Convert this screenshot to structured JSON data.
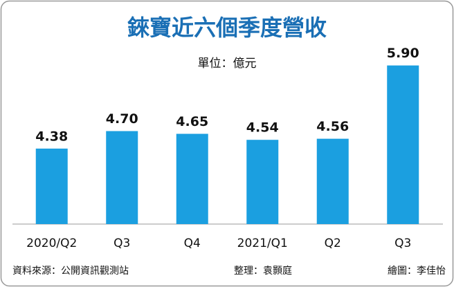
{
  "chart_data": {
    "type": "bar",
    "title": "錸寶近六個季度營收",
    "subtitle": "單位：億元",
    "categories": [
      "2020/Q2",
      "Q3",
      "Q4",
      "2021/Q1",
      "Q2",
      "Q3"
    ],
    "values": [
      4.38,
      4.7,
      4.65,
      4.54,
      4.56,
      5.9
    ],
    "value_labels": [
      "4.38",
      "4.70",
      "4.65",
      "4.54",
      "4.56",
      "5.90"
    ],
    "color": "#1b9fe0",
    "ylim": [
      3,
      6.3
    ],
    "source": "資料來源：公開資訊觀測站",
    "editor": "整理：袁顥庭",
    "illustrator": "繪圖：李佳怡"
  }
}
